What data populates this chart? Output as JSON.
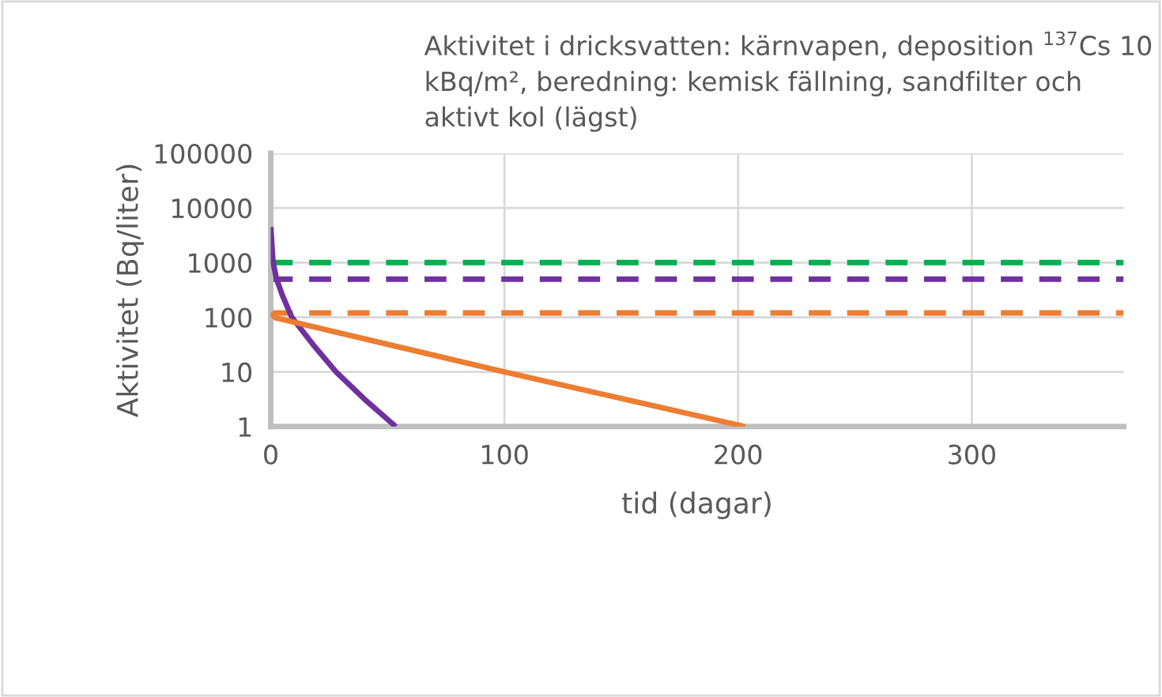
{
  "chart_data": {
    "type": "line",
    "title": "Aktivitet i dricksvatten: kärnvapen, deposition $^{137}$Cs 10 kBq/m², beredning: kemisk fällning, sandfilter och aktivt kol (lägst)",
    "xlabel": "tid (dagar)",
    "ylabel": "Aktivitet (Bq/liter)",
    "series": [
      {
        "color": "#7030a0",
        "x": [
          0,
          1,
          2.5,
          5,
          9,
          18,
          28,
          40,
          53.5
        ],
        "values": [
          4500,
          1000,
          500,
          250,
          100,
          32,
          10,
          3.2,
          1
        ]
      },
      {
        "color": "#ed7d31",
        "x": [
          0,
          2,
          100,
          203
        ],
        "values": [
          120,
          98,
          10,
          1
        ]
      }
    ],
    "ref_lines": [
      {
        "axis": "y",
        "value": 1000,
        "color": "#00b050",
        "line_style": "dashed"
      },
      {
        "axis": "y",
        "value": 500,
        "color": "#7030a0",
        "line_style": "dashed"
      },
      {
        "axis": "y",
        "value": 120,
        "color": "#ed7d31",
        "line_style": "dashed"
      }
    ],
    "log": "y",
    "xlim": [
      0,
      365
    ],
    "xticks": [
      0,
      100,
      200,
      300
    ],
    "ylim": [
      1,
      100000
    ],
    "yticks": [
      1,
      10,
      100,
      1000,
      10000,
      100000
    ],
    "grid": true,
    "line_style": "solid",
    "marker": "none"
  }
}
